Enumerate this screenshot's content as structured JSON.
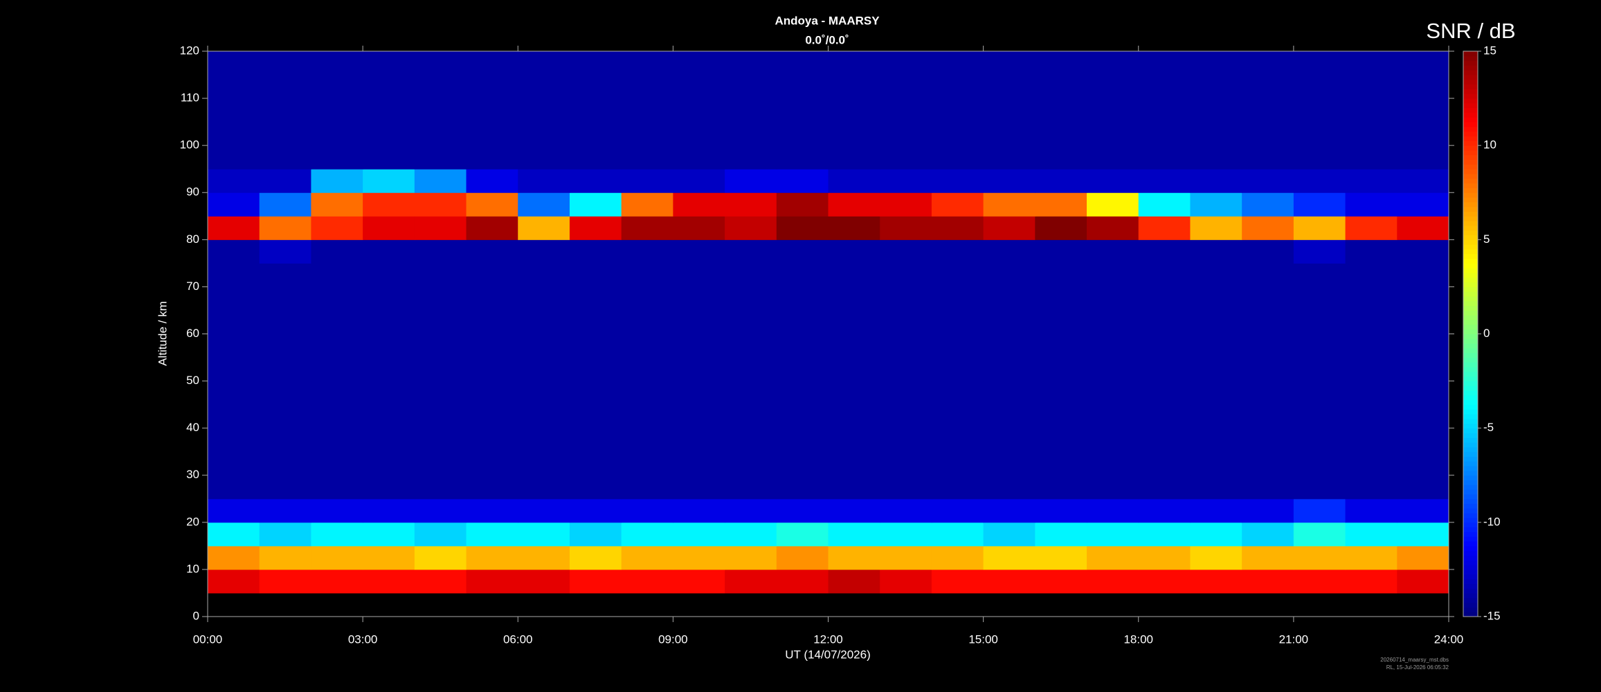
{
  "chart_data": {
    "type": "heatmap",
    "title": "Andoya - MAARSY",
    "subtitle": "0.0˚/0.0˚",
    "x_label": "UT (14/07/2026)",
    "y_label": "Altitude / km",
    "colorbar_label": "SNR / dB",
    "footnotes": [
      "20260714_maarsy_mst.dbs",
      "RL, 15-Jul-2026 06:05:32"
    ],
    "colormap": "jet",
    "xlim": [
      0,
      24
    ],
    "xticks": [
      {
        "value": 0,
        "label": "00:00"
      },
      {
        "value": 3,
        "label": "03:00"
      },
      {
        "value": 6,
        "label": "06:00"
      },
      {
        "value": 9,
        "label": "09:00"
      },
      {
        "value": 12,
        "label": "12:00"
      },
      {
        "value": 15,
        "label": "15:00"
      },
      {
        "value": 18,
        "label": "18:00"
      },
      {
        "value": 21,
        "label": "21:00"
      },
      {
        "value": 24,
        "label": "24:00"
      }
    ],
    "ylim": [
      0,
      120
    ],
    "yticks": [
      0,
      10,
      20,
      30,
      40,
      50,
      60,
      70,
      80,
      90,
      100,
      110,
      120
    ],
    "clim": [
      -15,
      15
    ],
    "cticks": [
      -15,
      -10,
      -5,
      0,
      5,
      10,
      15
    ],
    "x_bins": [
      0,
      1,
      2,
      3,
      4,
      5,
      6,
      7,
      8,
      9,
      10,
      11,
      12,
      13,
      14,
      15,
      16,
      17,
      18,
      19,
      20,
      21,
      22,
      23,
      24
    ],
    "y_bins": [
      0,
      5,
      10,
      15,
      20,
      25,
      30,
      35,
      40,
      45,
      50,
      55,
      60,
      65,
      70,
      75,
      80,
      85,
      90,
      95,
      100,
      105,
      110,
      115,
      120
    ],
    "values": [
      [
        null,
        null,
        null,
        null,
        null,
        null,
        null,
        null,
        null,
        null,
        null,
        null,
        null,
        null,
        null,
        null,
        null,
        null,
        null,
        null,
        null,
        null,
        null,
        null
      ],
      [
        12,
        11,
        11,
        11,
        11,
        12,
        12,
        11,
        11,
        11,
        12,
        12,
        13,
        12,
        11,
        11,
        11,
        11,
        11,
        11,
        11,
        11,
        11,
        12
      ],
      [
        7,
        6,
        6,
        6,
        5,
        6,
        6,
        5,
        6,
        6,
        6,
        7,
        6,
        6,
        6,
        5,
        5,
        6,
        6,
        5,
        6,
        6,
        6,
        7
      ],
      [
        -4,
        -5,
        -4,
        -4,
        -5,
        -4,
        -4,
        -5,
        -4,
        -4,
        -4,
        -3,
        -4,
        -4,
        -4,
        -5,
        -4,
        -4,
        -4,
        -4,
        -5,
        -3,
        -4,
        -4
      ],
      [
        -12,
        -12,
        -12,
        -12,
        -12,
        -12,
        -12,
        -12,
        -12,
        -12,
        -12,
        -12,
        -12,
        -12,
        -12,
        -12,
        -12,
        -12,
        -12,
        -12,
        -12,
        -10,
        -12,
        -12
      ],
      [
        -14,
        -14,
        -14,
        -14,
        -14,
        -14,
        -14,
        -14,
        -14,
        -14,
        -14,
        -14,
        -14,
        -14,
        -14,
        -14,
        -14,
        -14,
        -14,
        -14,
        -14,
        -14,
        -14,
        -14
      ],
      [
        -14,
        -14,
        -14,
        -14,
        -14,
        -14,
        -14,
        -14,
        -14,
        -14,
        -14,
        -14,
        -14,
        -14,
        -14,
        -14,
        -14,
        -14,
        -14,
        -14,
        -14,
        -14,
        -14,
        -14
      ],
      [
        -14,
        -14,
        -14,
        -14,
        -14,
        -14,
        -14,
        -14,
        -14,
        -14,
        -14,
        -14,
        -14,
        -14,
        -14,
        -14,
        -14,
        -14,
        -14,
        -14,
        -14,
        -14,
        -14,
        -14
      ],
      [
        -14,
        -14,
        -14,
        -14,
        -14,
        -14,
        -14,
        -14,
        -14,
        -14,
        -14,
        -14,
        -14,
        -14,
        -14,
        -14,
        -14,
        -14,
        -14,
        -14,
        -14,
        -14,
        -14,
        -14
      ],
      [
        -14,
        -14,
        -14,
        -14,
        -14,
        -14,
        -14,
        -14,
        -14,
        -14,
        -14,
        -14,
        -14,
        -14,
        -14,
        -14,
        -14,
        -14,
        -14,
        -14,
        -14,
        -14,
        -14,
        -14
      ],
      [
        -14,
        -14,
        -14,
        -14,
        -14,
        -14,
        -14,
        -14,
        -14,
        -14,
        -14,
        -14,
        -14,
        -14,
        -14,
        -14,
        -14,
        -14,
        -14,
        -14,
        -14,
        -14,
        -14,
        -14
      ],
      [
        -14,
        -14,
        -14,
        -14,
        -14,
        -14,
        -14,
        -14,
        -14,
        -14,
        -14,
        -14,
        -14,
        -14,
        -14,
        -14,
        -14,
        -14,
        -14,
        -14,
        -14,
        -14,
        -14,
        -14
      ],
      [
        -14,
        -14,
        -14,
        -14,
        -14,
        -14,
        -14,
        -14,
        -14,
        -14,
        -14,
        -14,
        -14,
        -14,
        -14,
        -14,
        -14,
        -14,
        -14,
        -14,
        -14,
        -14,
        -14,
        -14
      ],
      [
        -14,
        -14,
        -14,
        -14,
        -14,
        -14,
        -14,
        -14,
        -14,
        -14,
        -14,
        -14,
        -14,
        -14,
        -14,
        -14,
        -14,
        -14,
        -14,
        -14,
        -14,
        -14,
        -14,
        -14
      ],
      [
        -14,
        -14,
        -14,
        -14,
        -14,
        -14,
        -14,
        -14,
        -14,
        -14,
        -14,
        -14,
        -14,
        -14,
        -14,
        -14,
        -14,
        -14,
        -14,
        -14,
        -14,
        -14,
        -14,
        -14
      ],
      [
        -14,
        -13,
        -14,
        -14,
        -14,
        -14,
        -14,
        -14,
        -14,
        -14,
        -14,
        -14,
        -14,
        -14,
        -14,
        -14,
        -14,
        -14,
        -14,
        -14,
        -14,
        -13,
        -14,
        -14
      ],
      [
        12,
        8,
        10,
        12,
        12,
        14,
        6,
        12,
        14,
        14,
        13,
        15,
        15,
        14,
        14,
        13,
        15,
        14,
        10,
        6,
        8,
        6,
        10,
        12
      ],
      [
        -12,
        -8,
        8,
        10,
        10,
        8,
        -8,
        -4,
        8,
        12,
        12,
        14,
        12,
        12,
        10,
        8,
        8,
        4,
        -4,
        -6,
        -8,
        -10,
        -12,
        -12
      ],
      [
        -13,
        -13,
        -6,
        -5,
        -7,
        -12,
        -13,
        -13,
        -13,
        -13,
        -12,
        -12,
        -13,
        -13,
        -13,
        -13,
        -13,
        -13,
        -13,
        -13,
        -13,
        -13,
        -13,
        -13
      ],
      [
        -14,
        -14,
        -14,
        -14,
        -14,
        -14,
        -14,
        -14,
        -14,
        -14,
        -14,
        -14,
        -14,
        -14,
        -14,
        -14,
        -14,
        -14,
        -14,
        -14,
        -14,
        -14,
        -14,
        -14
      ],
      [
        -14,
        -14,
        -14,
        -14,
        -14,
        -14,
        -14,
        -14,
        -14,
        -14,
        -14,
        -14,
        -14,
        -14,
        -14,
        -14,
        -14,
        -14,
        -14,
        -14,
        -14,
        -14,
        -14,
        -14
      ],
      [
        -14,
        -14,
        -14,
        -14,
        -14,
        -14,
        -14,
        -14,
        -14,
        -14,
        -14,
        -14,
        -14,
        -14,
        -14,
        -14,
        -14,
        -14,
        -14,
        -14,
        -14,
        -14,
        -14,
        -14
      ],
      [
        -14,
        -14,
        -14,
        -14,
        -14,
        -14,
        -14,
        -14,
        -14,
        -14,
        -14,
        -14,
        -14,
        -14,
        -14,
        -14,
        -14,
        -14,
        -14,
        -14,
        -14,
        -14,
        -14,
        -14
      ],
      [
        -14,
        -14,
        -14,
        -14,
        -14,
        -14,
        -14,
        -14,
        -14,
        -14,
        -14,
        -14,
        -14,
        -14,
        -14,
        -14,
        -14,
        -14,
        -14,
        -14,
        -14,
        -14,
        -14,
        -14
      ]
    ]
  }
}
